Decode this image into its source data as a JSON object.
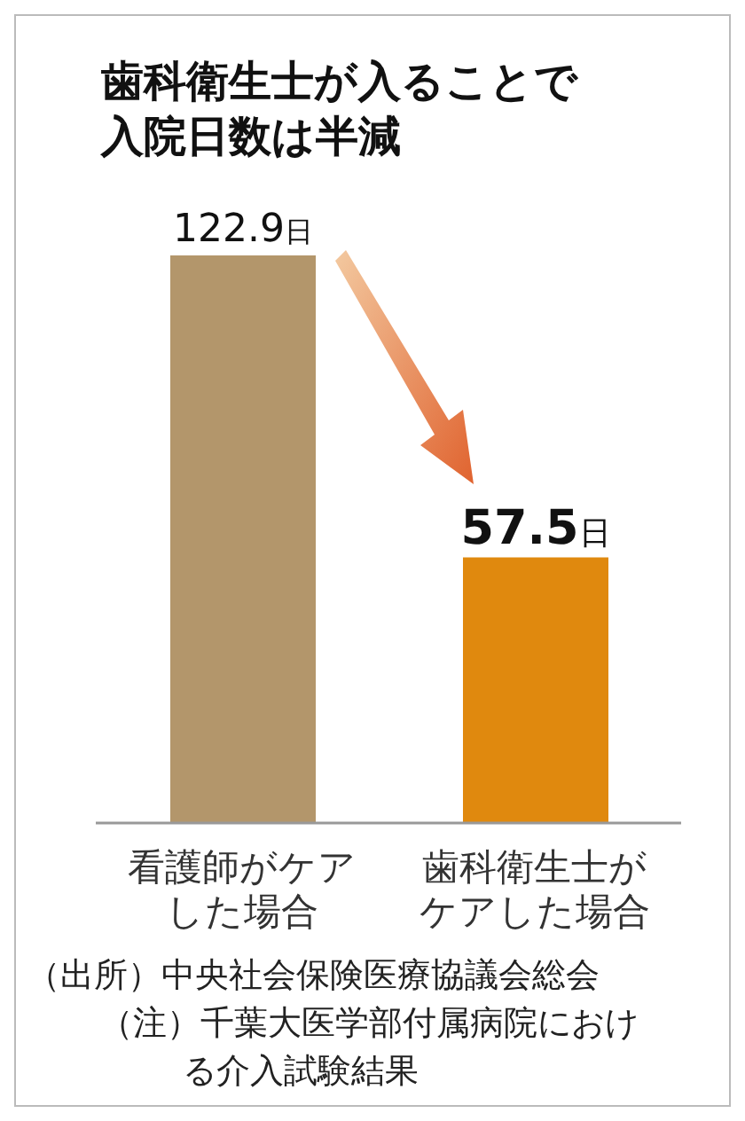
{
  "chart_data": {
    "type": "bar",
    "title": "歯科衛生士が入ることで入院日数は半減",
    "categories": [
      "看護師がケアした場合",
      "歯科衛生士がケアした場合"
    ],
    "values": [
      122.9,
      57.5
    ],
    "colors": [
      "#b3966b",
      "#e0890e"
    ],
    "value_labels": [
      "122.9日",
      "57.5日"
    ],
    "grid": false,
    "legend": false,
    "tick_labels": "x",
    "annotations": [
      "（出所）中央社会保険医療協議会総会",
      "（注）千葉大医学部付属病院における介入試験結果"
    ]
  }
}
